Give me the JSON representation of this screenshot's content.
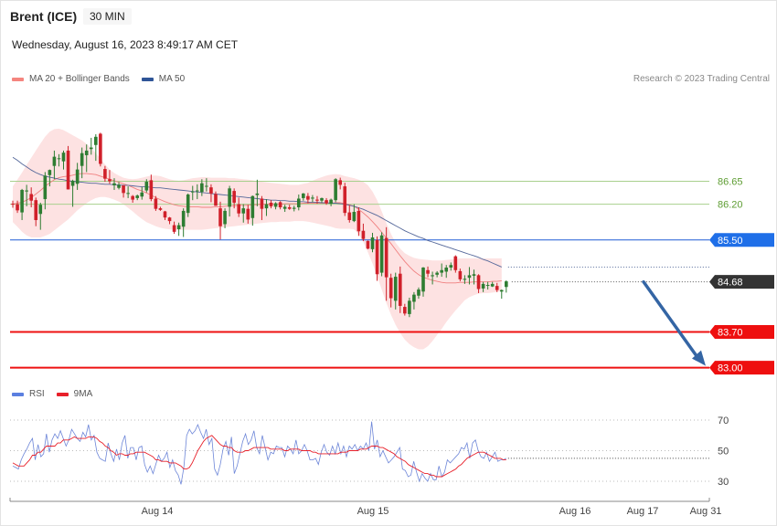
{
  "header": {
    "instrument": "Brent (ICE)",
    "timeframe": "30 MIN",
    "datetime": "Wednesday, August 16, 2023 8:49:17 AM CET"
  },
  "legend_top": [
    {
      "label": "MA 20 + Bollinger Bands",
      "color": "#f5857f"
    },
    {
      "label": "MA 50",
      "color": "#2f5597"
    }
  ],
  "legend_bottom": [
    {
      "label": "RSI",
      "color": "#5b7fe0"
    },
    {
      "label": "9MA",
      "color": "#e8202a"
    }
  ],
  "copyright": "Research © 2023 Trading Central",
  "colors": {
    "up_candle": "#2e7d32",
    "down_candle": "#d0202a",
    "bollinger_fill": "#fde2e2",
    "ma20": "#f08080",
    "ma50": "#55689a",
    "resistance": "#a8d08d",
    "pivot": "#1f5bd6",
    "support": "#ee1111",
    "arrow": "#3465a4",
    "rsi": "#6d86d8",
    "rsi_ma": "#e8202a"
  },
  "chart_data": {
    "type": "candlestick",
    "price_axis": {
      "min": 82.6,
      "max": 88.5
    },
    "x_ticks": [
      "Aug 14",
      "Aug 15",
      "Aug 16",
      "Aug 17",
      "Aug 31"
    ],
    "levels": [
      {
        "name": "resistance2",
        "value": 86.65,
        "label": "86.65",
        "kind": "resistance"
      },
      {
        "name": "resistance1",
        "value": 86.2,
        "label": "86.20",
        "kind": "resistance"
      },
      {
        "name": "pivot",
        "value": 85.5,
        "label": "85.50",
        "kind": "pivot"
      },
      {
        "name": "last-price",
        "value": 84.68,
        "label": "84.68",
        "kind": "last"
      },
      {
        "name": "support1",
        "value": 83.7,
        "label": "83.70",
        "kind": "support"
      },
      {
        "name": "support2",
        "value": 83.0,
        "label": "83.00",
        "kind": "support"
      }
    ],
    "forecast_arrow": {
      "from_price": 84.68,
      "to_price": 83.0
    },
    "candles": [
      [
        86.21,
        86.27,
        86.13,
        86.2
      ],
      [
        86.2,
        86.27,
        86.03,
        86.08
      ],
      [
        86.04,
        86.5,
        85.89,
        86.48
      ],
      [
        86.45,
        86.58,
        86.16,
        86.47
      ],
      [
        86.4,
        86.53,
        86.14,
        86.27
      ],
      [
        86.28,
        86.33,
        85.77,
        85.89
      ],
      [
        86.01,
        86.23,
        85.7,
        86.19
      ],
      [
        86.3,
        86.83,
        86.1,
        86.76
      ],
      [
        86.77,
        86.88,
        86.55,
        86.87
      ],
      [
        86.95,
        87.25,
        86.69,
        87.13
      ],
      [
        87.1,
        87.18,
        86.94,
        87.1
      ],
      [
        87.04,
        87.25,
        86.88,
        87.21
      ],
      [
        87.25,
        87.34,
        86.49,
        86.49
      ],
      [
        86.56,
        86.68,
        86.15,
        86.66
      ],
      [
        86.6,
        87.01,
        86.48,
        86.88
      ],
      [
        86.95,
        87.31,
        86.71,
        87.2
      ],
      [
        87.16,
        87.37,
        86.83,
        87.25
      ],
      [
        87.28,
        87.5,
        87.17,
        87.31
      ],
      [
        87.36,
        87.57,
        87.05,
        87.52
      ],
      [
        87.58,
        87.6,
        86.94,
        86.99
      ],
      [
        86.89,
        86.95,
        86.64,
        86.7
      ],
      [
        86.69,
        86.87,
        86.6,
        86.65
      ],
      [
        86.57,
        86.71,
        86.48,
        86.61
      ],
      [
        86.52,
        86.63,
        86.49,
        86.58
      ],
      [
        86.57,
        86.57,
        86.33,
        86.42
      ],
      [
        86.41,
        86.55,
        86.32,
        86.42
      ],
      [
        86.36,
        86.38,
        86.23,
        86.29
      ],
      [
        86.32,
        86.39,
        86.28,
        86.37
      ],
      [
        86.35,
        86.54,
        86.29,
        86.43
      ],
      [
        86.47,
        86.69,
        86.43,
        86.64
      ],
      [
        86.67,
        86.78,
        86.26,
        86.3
      ],
      [
        86.31,
        86.36,
        86.07,
        86.11
      ],
      [
        86.12,
        86.15,
        86.07,
        86.09
      ],
      [
        86.06,
        86.07,
        85.89,
        85.94
      ],
      [
        85.94,
        85.95,
        85.81,
        85.87
      ],
      [
        85.79,
        85.86,
        85.62,
        85.66
      ],
      [
        85.71,
        85.84,
        85.58,
        85.79
      ],
      [
        85.76,
        86.12,
        85.56,
        86.07
      ],
      [
        86.03,
        86.41,
        85.95,
        86.39
      ],
      [
        86.45,
        86.56,
        86.28,
        86.45
      ],
      [
        86.47,
        86.59,
        86.3,
        86.47
      ],
      [
        86.44,
        86.69,
        86.36,
        86.61
      ],
      [
        86.56,
        86.71,
        86.45,
        86.56
      ],
      [
        86.53,
        86.59,
        86.24,
        86.41
      ],
      [
        86.4,
        86.45,
        86.17,
        86.17
      ],
      [
        86.12,
        86.25,
        85.51,
        85.77
      ],
      [
        85.81,
        86.12,
        85.73,
        86.07
      ],
      [
        86.15,
        86.56,
        85.96,
        86.51
      ],
      [
        86.46,
        86.51,
        86.12,
        86.23
      ],
      [
        86.2,
        86.33,
        85.95,
        86.02
      ],
      [
        86.02,
        86.2,
        85.84,
        86.12
      ],
      [
        86.11,
        86.19,
        85.82,
        85.9
      ],
      [
        85.93,
        86.37,
        85.78,
        86.36
      ],
      [
        86.38,
        86.68,
        86.16,
        86.41
      ],
      [
        86.31,
        86.36,
        85.89,
        86.11
      ],
      [
        86.12,
        86.3,
        85.97,
        86.2
      ],
      [
        86.23,
        86.28,
        86.12,
        86.16
      ],
      [
        86.15,
        86.24,
        86.1,
        86.22
      ],
      [
        86.24,
        86.26,
        86.1,
        86.14
      ],
      [
        86.11,
        86.19,
        86.05,
        86.15
      ],
      [
        86.14,
        86.19,
        86.09,
        86.11
      ],
      [
        86.11,
        86.17,
        86.06,
        86.13
      ],
      [
        86.14,
        86.39,
        86.08,
        86.31
      ],
      [
        86.32,
        86.42,
        86.27,
        86.41
      ],
      [
        86.36,
        86.42,
        86.22,
        86.29
      ],
      [
        86.31,
        86.38,
        86.24,
        86.33
      ],
      [
        86.29,
        86.36,
        86.21,
        86.27
      ],
      [
        86.27,
        86.33,
        86.23,
        86.32
      ],
      [
        86.28,
        86.32,
        86.19,
        86.22
      ],
      [
        86.21,
        86.31,
        86.16,
        86.29
      ],
      [
        86.28,
        86.71,
        86.24,
        86.69
      ],
      [
        86.67,
        86.72,
        86.49,
        86.58
      ],
      [
        86.55,
        86.62,
        85.97,
        86.03
      ],
      [
        86.04,
        86.18,
        85.84,
        85.89
      ],
      [
        85.87,
        86.2,
        85.85,
        86.05
      ],
      [
        86.07,
        86.14,
        85.58,
        85.67
      ],
      [
        85.68,
        85.82,
        85.48,
        85.52
      ],
      [
        85.48,
        85.49,
        85.32,
        85.33
      ],
      [
        85.32,
        85.64,
        85.26,
        85.55
      ],
      [
        85.5,
        85.57,
        84.7,
        84.83
      ],
      [
        84.86,
        85.65,
        84.79,
        85.59
      ],
      [
        85.54,
        85.75,
        84.31,
        84.77
      ],
      [
        84.76,
        84.84,
        84.18,
        84.36
      ],
      [
        84.31,
        84.86,
        84.14,
        84.78
      ],
      [
        84.84,
        84.98,
        84.07,
        84.21
      ],
      [
        84.19,
        84.25,
        84.02,
        84.06
      ],
      [
        84.05,
        84.37,
        83.99,
        84.31
      ],
      [
        84.29,
        84.48,
        84.14,
        84.43
      ],
      [
        84.41,
        84.57,
        84.35,
        84.53
      ],
      [
        84.49,
        84.97,
        84.39,
        84.96
      ],
      [
        84.91,
        84.98,
        84.77,
        84.84
      ],
      [
        84.79,
        84.88,
        84.63,
        84.81
      ],
      [
        84.82,
        84.89,
        84.77,
        84.86
      ],
      [
        84.86,
        85.04,
        84.78,
        84.91
      ],
      [
        84.88,
        85.01,
        84.76,
        84.96
      ],
      [
        84.96,
        85.06,
        84.9,
        85.01
      ],
      [
        85.18,
        85.2,
        84.86,
        84.91
      ],
      [
        84.89,
        84.94,
        84.69,
        84.73
      ],
      [
        84.72,
        84.81,
        84.64,
        84.74
      ],
      [
        84.76,
        84.97,
        84.63,
        84.81
      ],
      [
        84.8,
        84.92,
        84.63,
        84.83
      ],
      [
        84.81,
        84.83,
        84.46,
        84.54
      ],
      [
        84.55,
        84.68,
        84.48,
        84.64
      ],
      [
        84.61,
        84.68,
        84.53,
        84.62
      ],
      [
        84.59,
        84.68,
        84.58,
        84.64
      ],
      [
        84.6,
        84.66,
        84.48,
        84.52
      ],
      [
        84.49,
        84.53,
        84.35,
        84.52
      ],
      [
        84.58,
        84.71,
        84.47,
        84.69
      ]
    ],
    "ma20": [
      86.2,
      86.22,
      86.24,
      86.28,
      86.33,
      86.4,
      86.47,
      86.55,
      86.62,
      86.68,
      86.72,
      86.74,
      86.75,
      86.77,
      86.79,
      86.8,
      86.8,
      86.79,
      86.78,
      86.75,
      86.72,
      86.69,
      86.66,
      86.63,
      86.6,
      86.57,
      86.53,
      86.49,
      86.46,
      86.42,
      86.38,
      86.33,
      86.29,
      86.25,
      86.22,
      86.19,
      86.17,
      86.16,
      86.15,
      86.15,
      86.15,
      86.14,
      86.14,
      86.14,
      86.15,
      86.15,
      86.16,
      86.17,
      86.17,
      86.18,
      86.18,
      86.18,
      86.19,
      86.19,
      86.2,
      86.2,
      86.2,
      86.2,
      86.2,
      86.21,
      86.21,
      86.21,
      86.21,
      86.22,
      86.22,
      86.22,
      86.22,
      86.22,
      86.22,
      86.22,
      86.23,
      86.23,
      86.21,
      86.19,
      86.16,
      86.1,
      86.03,
      85.95,
      85.86,
      85.76,
      85.65,
      85.54,
      85.43,
      85.31,
      85.19,
      85.08,
      84.98,
      84.89,
      84.82,
      84.77,
      84.74,
      84.71,
      84.69,
      84.67,
      84.66,
      84.66,
      84.66,
      84.67,
      84.67,
      84.67,
      84.68,
      84.68,
      84.68,
      84.68,
      84.69,
      84.69,
      84.7
    ],
    "bb_upper": [
      86.55,
      86.68,
      86.82,
      86.97,
      87.11,
      87.25,
      87.39,
      87.52,
      87.62,
      87.67,
      87.68,
      87.65,
      87.6,
      87.55,
      87.5,
      87.45,
      87.38,
      87.3,
      87.2,
      87.09,
      86.98,
      86.88,
      86.81,
      86.76,
      86.72,
      86.7,
      86.69,
      86.7,
      86.72,
      86.74,
      86.76,
      86.76,
      86.75,
      86.72,
      86.69,
      86.67,
      86.66,
      86.67,
      86.69,
      86.71,
      86.72,
      86.73,
      86.73,
      86.72,
      86.72,
      86.72,
      86.72,
      86.71,
      86.71,
      86.7,
      86.69,
      86.68,
      86.67,
      86.65,
      86.64,
      86.63,
      86.62,
      86.61,
      86.6,
      86.59,
      86.58,
      86.58,
      86.58,
      86.6,
      86.62,
      86.66,
      86.7,
      86.73,
      86.76,
      86.78,
      86.79,
      86.78,
      86.75,
      86.73,
      86.71,
      86.68,
      86.64,
      86.57,
      86.45,
      86.28,
      86.06,
      85.83,
      85.62,
      85.45,
      85.33,
      85.24,
      85.19,
      85.15,
      85.13,
      85.12,
      85.11,
      85.1,
      85.1,
      85.1,
      85.11,
      85.12,
      85.13,
      85.14,
      85.14,
      85.14,
      85.14,
      85.14,
      85.14,
      85.14,
      85.14,
      85.14,
      85.14
    ],
    "bb_lower": [
      85.85,
      85.76,
      85.66,
      85.59,
      85.55,
      85.55,
      85.55,
      85.58,
      85.62,
      85.69,
      85.76,
      85.83,
      85.9,
      85.99,
      86.08,
      86.15,
      86.22,
      86.28,
      86.32,
      86.34,
      86.34,
      86.32,
      86.29,
      86.25,
      86.2,
      86.13,
      86.06,
      85.98,
      85.91,
      85.85,
      85.81,
      85.77,
      85.74,
      85.72,
      85.71,
      85.7,
      85.7,
      85.7,
      85.7,
      85.7,
      85.7,
      85.7,
      85.71,
      85.72,
      85.73,
      85.74,
      85.75,
      85.76,
      85.77,
      85.78,
      85.79,
      85.8,
      85.81,
      85.82,
      85.83,
      85.84,
      85.85,
      85.85,
      85.86,
      85.86,
      85.86,
      85.87,
      85.87,
      85.87,
      85.86,
      85.84,
      85.82,
      85.8,
      85.78,
      85.76,
      85.73,
      85.72,
      85.72,
      85.72,
      85.71,
      85.62,
      85.46,
      85.26,
      85.04,
      84.79,
      84.53,
      84.27,
      84.04,
      83.84,
      83.68,
      83.55,
      83.46,
      83.4,
      83.36,
      83.36,
      83.42,
      83.52,
      83.64,
      83.76,
      83.89,
      84.01,
      84.12,
      84.22,
      84.32,
      84.38,
      84.42,
      84.45,
      84.46,
      84.46,
      84.47,
      84.48,
      84.5
    ],
    "ma50": [
      87.12,
      87.06,
      86.99,
      86.93,
      86.87,
      86.82,
      86.78,
      86.75,
      86.73,
      86.71,
      86.69,
      86.68,
      86.66,
      86.65,
      86.64,
      86.63,
      86.62,
      86.61,
      86.61,
      86.6,
      86.59,
      86.59,
      86.58,
      86.58,
      86.57,
      86.57,
      86.56,
      86.55,
      86.54,
      86.54,
      86.53,
      86.52,
      86.52,
      86.51,
      86.5,
      86.49,
      86.48,
      86.47,
      86.46,
      86.45,
      86.44,
      86.43,
      86.42,
      86.41,
      86.4,
      86.39,
      86.38,
      86.37,
      86.36,
      86.35,
      86.34,
      86.33,
      86.32,
      86.31,
      86.3,
      86.29,
      86.28,
      86.28,
      86.27,
      86.27,
      86.26,
      86.26,
      86.25,
      86.25,
      86.24,
      86.24,
      86.24,
      86.23,
      86.23,
      86.22,
      86.22,
      86.21,
      86.2,
      86.18,
      86.16,
      86.13,
      86.1,
      86.06,
      86.02,
      85.98,
      85.93,
      85.88,
      85.83,
      85.78,
      85.73,
      85.68,
      85.64,
      85.6,
      85.56,
      85.53,
      85.49,
      85.46,
      85.43,
      85.4,
      85.37,
      85.34,
      85.31,
      85.28,
      85.25,
      85.22,
      85.19,
      85.16,
      85.12,
      85.09,
      85.05,
      85.01,
      84.97
    ],
    "rsi_axis": {
      "ticks": [
        70,
        50,
        30
      ]
    },
    "rsi": [
      40,
      39,
      38,
      44,
      48,
      51,
      55,
      58,
      44,
      54,
      46,
      48,
      61,
      49,
      57,
      61,
      58,
      63,
      58,
      53,
      57,
      64,
      61,
      58,
      56,
      62,
      59,
      67,
      57,
      60,
      49,
      45,
      44,
      43,
      55,
      48,
      43,
      51,
      44,
      55,
      60,
      45,
      52,
      52,
      44,
      52,
      53,
      41,
      36,
      40,
      35,
      41,
      47,
      43,
      45,
      49,
      39,
      44,
      37,
      34,
      28,
      39,
      60,
      64,
      61,
      63,
      67,
      62,
      58,
      64,
      54,
      58,
      38,
      34,
      41,
      51,
      56,
      47,
      59,
      35,
      40,
      48,
      56,
      61,
      54,
      57,
      63,
      52,
      48,
      60,
      52,
      44,
      49,
      48,
      53,
      52,
      52,
      46,
      53,
      51,
      48,
      57,
      48,
      50,
      54,
      50,
      44,
      44,
      45,
      41,
      49,
      54,
      49,
      47,
      53,
      48,
      55,
      48,
      53,
      46,
      53,
      51,
      54,
      50,
      53,
      51,
      55,
      50,
      69,
      51,
      57,
      46,
      50,
      46,
      42,
      44,
      46,
      49,
      52,
      38,
      37,
      33,
      34,
      43,
      36,
      30,
      35,
      32,
      30,
      35,
      31,
      31,
      40,
      33,
      36,
      44,
      42,
      44,
      46,
      48,
      52,
      51,
      55,
      45,
      55,
      57,
      50,
      46,
      45,
      49,
      43,
      46,
      49,
      43,
      44,
      44,
      45
    ],
    "rsi_ma": [
      42,
      41,
      40,
      40,
      40,
      42,
      44,
      47,
      47,
      49,
      49,
      51,
      53,
      53,
      53,
      53,
      55,
      55,
      57,
      57,
      57,
      58,
      59,
      58,
      58,
      58,
      58,
      59,
      59,
      59,
      58,
      56,
      55,
      53,
      52,
      50,
      49,
      47,
      48,
      48,
      47,
      47,
      48,
      48,
      49,
      49,
      49,
      49,
      48,
      47,
      46,
      44,
      44,
      43,
      43,
      43,
      42,
      42,
      42,
      41,
      40,
      38,
      38,
      39,
      42,
      46,
      50,
      53,
      56,
      58,
      59,
      60,
      58,
      56,
      54,
      53,
      53,
      52,
      52,
      50,
      49,
      49,
      49,
      50,
      50,
      51,
      52,
      52,
      52,
      52,
      52,
      52,
      51,
      51,
      51,
      51,
      51,
      50,
      50,
      51,
      51,
      51,
      51,
      50,
      50,
      50,
      50,
      49,
      49,
      48,
      48,
      48,
      48,
      48,
      48,
      48,
      48,
      49,
      49,
      49,
      50,
      50,
      50,
      50,
      51,
      51,
      51,
      52,
      53,
      53,
      53,
      52,
      52,
      51,
      50,
      49,
      48,
      46,
      45,
      44,
      43,
      41,
      40,
      39,
      38,
      37,
      36,
      35,
      35,
      34,
      34,
      33,
      33,
      33,
      34,
      35,
      36,
      37,
      38,
      40,
      41,
      43,
      45,
      46,
      47,
      48,
      49,
      49,
      49,
      48,
      47,
      46,
      45,
      45,
      45,
      44,
      44
    ]
  }
}
